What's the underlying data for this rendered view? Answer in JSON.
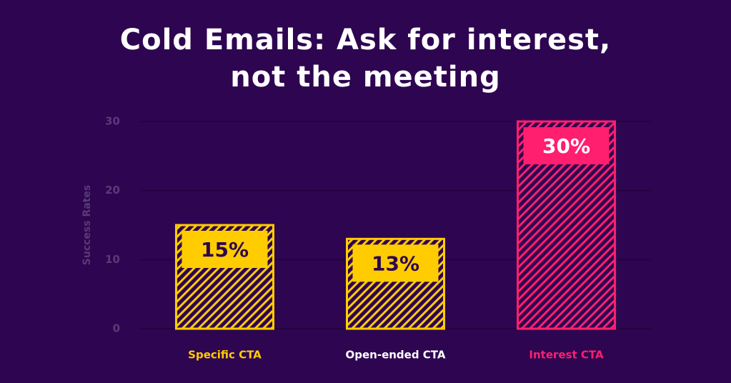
{
  "chart_data": {
    "type": "bar",
    "title": "Cold Emails: Ask for interest, not the meeting",
    "y_label": "Success Rates",
    "categories": [
      "Specific CTA",
      "Open-ended CTA",
      "Interest CTA"
    ],
    "values": [
      15,
      13,
      30
    ],
    "value_labels": [
      "15%",
      "13%",
      "30%"
    ],
    "colors": [
      "#ffcc00",
      "#ffcc00",
      "#ff1f6e"
    ],
    "label_colors": [
      "#ffcc00",
      "#ffffff",
      "#ff1f6e"
    ],
    "value_label_colors": [
      "#2e0550",
      "#2e0550",
      "#ffffff"
    ],
    "ylim": [
      0,
      30
    ],
    "yticks": [
      0,
      10,
      20,
      30
    ],
    "grid": true
  }
}
